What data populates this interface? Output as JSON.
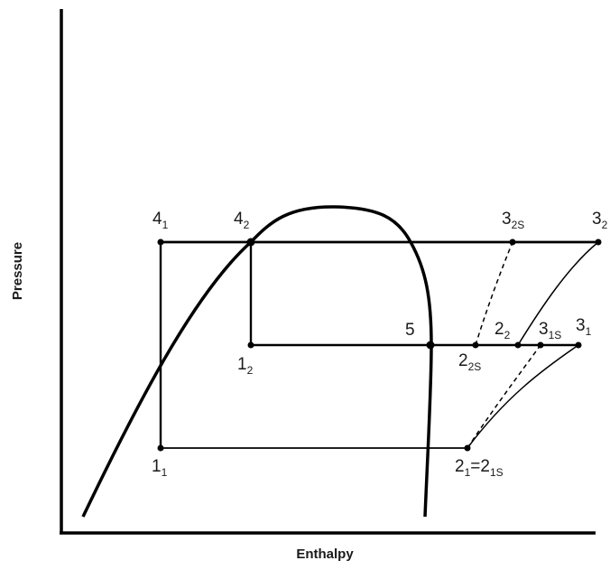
{
  "diagram": {
    "axes": {
      "x_label": "Enthalpy",
      "y_label": "Pressure"
    },
    "labels": {
      "l4_1": {
        "main": "4",
        "sub": "1"
      },
      "l4_2": {
        "main": "4",
        "sub": "2"
      },
      "l3_2s": {
        "main": "3",
        "sub": "2S"
      },
      "l3_2": {
        "main": "3",
        "sub": "2"
      },
      "l5": {
        "main": "5"
      },
      "l2_2": {
        "main": "2",
        "sub": "2"
      },
      "l3_1s": {
        "main": "3",
        "sub": "1S"
      },
      "l3_1": {
        "main": "3",
        "sub": "1"
      },
      "l1_2": {
        "main": "1",
        "sub": "2"
      },
      "l2_2s": {
        "main": "2",
        "sub": "2S"
      },
      "l1_1": {
        "main": "1",
        "sub": "1"
      },
      "l2_1": {
        "main": "2",
        "sub": "1",
        "eq": "=",
        "main2": "2",
        "sub2": "1S"
      }
    },
    "colors": {
      "line": "#000000",
      "text": "#1a1a1a",
      "background": "#ffffff"
    }
  }
}
